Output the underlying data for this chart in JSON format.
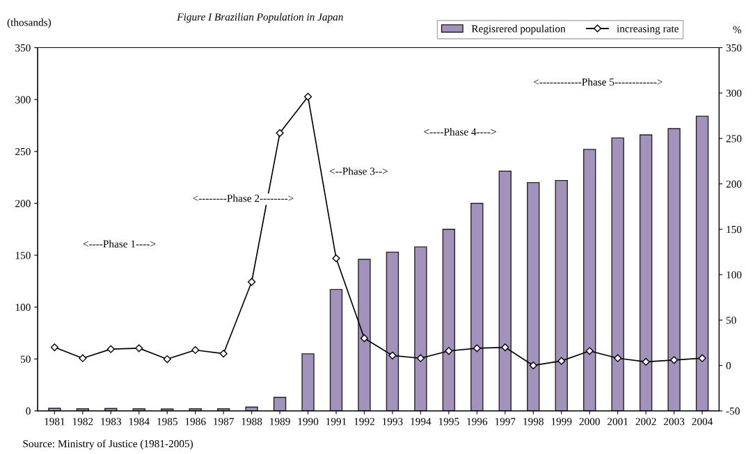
{
  "chart_data": {
    "type": "bar",
    "title": "Figure I Brazilian Population in Japan",
    "ylabel": "(thosands)",
    "y2label": "%",
    "categories": [
      "1981",
      "1982",
      "1983",
      "1984",
      "1985",
      "1986",
      "1987",
      "1988",
      "1989",
      "1990",
      "1991",
      "1992",
      "1993",
      "1994",
      "1995",
      "1996",
      "1997",
      "1998",
      "1999",
      "2000",
      "2001",
      "2002",
      "2003",
      "2004"
    ],
    "series": [
      {
        "name": "Regisrered population",
        "color": "#a292bc",
        "values": [
          2.5,
          2,
          2.3,
          2,
          1.8,
          2,
          2,
          3.7,
          13,
          55,
          117,
          146,
          153,
          158,
          175,
          200,
          231,
          220,
          222,
          252,
          263,
          266,
          272,
          284
        ]
      },
      {
        "name": "increasing rate",
        "type": "line",
        "axis": "y2",
        "color": "#000000",
        "marker": "diamond",
        "line_style": "solid",
        "values": [
          20,
          8,
          18,
          19,
          7,
          17,
          13,
          92,
          256,
          296,
          118,
          30,
          11,
          8,
          16,
          19,
          20,
          0,
          5,
          16,
          8,
          4,
          6,
          8
        ]
      }
    ],
    "ylim": [
      0,
      350
    ],
    "yticks": [
      0,
      50,
      100,
      150,
      200,
      250,
      300,
      350
    ],
    "y2lim": [
      -50,
      350
    ],
    "y2ticks": [
      -50,
      0,
      50,
      100,
      150,
      200,
      250,
      300,
      350
    ],
    "grid": false,
    "legend": "top right",
    "annotations": [
      "<----Phase 1---->",
      "<--------Phase 2-------->",
      "<--Phase 3-->",
      "<----Phase 4---->",
      "<------------Phase 5------------>",
      "Source: Ministry of Justice (1981-2005)"
    ]
  }
}
